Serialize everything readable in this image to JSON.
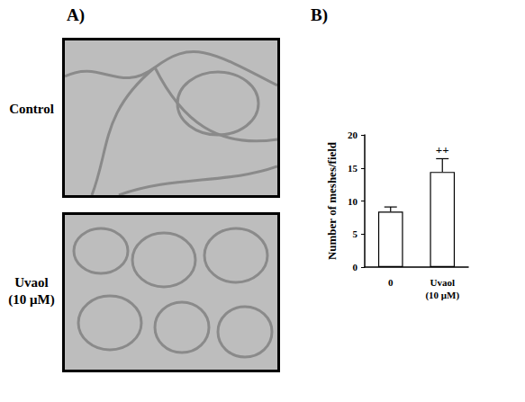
{
  "figure": {
    "panel_labels": [
      "A)",
      "B)"
    ],
    "image_labels": [
      "Control",
      "Uvaol\n(10 μM)"
    ]
  },
  "chart_data": {
    "type": "bar",
    "y_label": "Number of meshes/field",
    "categories": [
      "0",
      "Uvaol\n(10 μM)"
    ],
    "values": [
      8.4,
      14.4
    ],
    "errors": [
      0.7,
      2.0
    ],
    "color": "#ffffff",
    "ylim": [
      0,
      20
    ],
    "yticks": [
      0,
      5,
      10,
      15,
      20
    ],
    "annotations": [
      {
        "category": "Uvaol\n(10 μM)",
        "text": "++"
      }
    ]
  }
}
